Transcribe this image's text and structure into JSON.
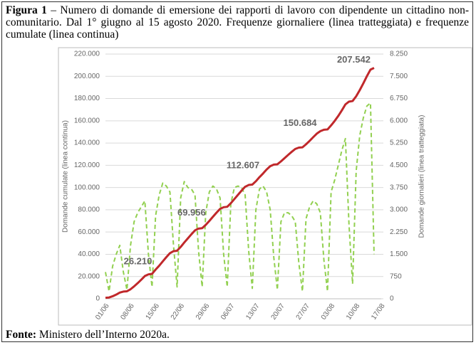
{
  "chart_data": {
    "type": "line",
    "label": "Figura 1",
    "title": "– Numero di domande di emersione dei rapporti di lavoro con dipendente un cittadino non-comunitario. Dal 1° giugno al 15 agosto 2020. Frequenze giornaliere (linea tratteggiata) e frequenze cumulate (linea continua)",
    "ylabel": "Domande cumulate (linea continua)",
    "y2label": "Domande giornalieri (linea tratteggiata)",
    "source_label": "Fonte:",
    "source": "Ministero dell’Interno 2020a.",
    "categories": [
      "01/06",
      null,
      null,
      null,
      null,
      null,
      null,
      "08/06",
      null,
      null,
      null,
      null,
      null,
      null,
      "15/06",
      null,
      null,
      null,
      null,
      null,
      null,
      "22/06",
      null,
      null,
      null,
      null,
      null,
      null,
      "29/06",
      null,
      null,
      null,
      null,
      null,
      null,
      "06/07",
      null,
      null,
      null,
      null,
      null,
      null,
      "13/07",
      null,
      null,
      null,
      null,
      null,
      null,
      "20/07",
      null,
      null,
      null,
      null,
      null,
      null,
      "27/07",
      null,
      null,
      null,
      null,
      null,
      null,
      "03/08",
      null,
      null,
      null,
      null,
      null,
      null,
      "10/08",
      null,
      null,
      null,
      null,
      null,
      null,
      "17/08"
    ],
    "series": [
      {
        "name": "Domande cumulate",
        "color": "#c0282b",
        "dashed": false,
        "values": [
          900,
          1150,
          2250,
          3750,
          5550,
          6450,
          6750,
          8550,
          11150,
          14050,
          17150,
          20450,
          21950,
          22350,
          26210,
          29700,
          33600,
          37400,
          41000,
          42800,
          43200,
          46600,
          50550,
          54300,
          58000,
          61500,
          63100,
          63500,
          66400,
          69956,
          73700,
          77400,
          80800,
          82300,
          82700,
          85900,
          89650,
          93450,
          97200,
          100700,
          102300,
          102650,
          105650,
          109350,
          112607,
          116200,
          119200,
          120600,
          120900,
          123500,
          126400,
          129300,
          132100,
          134700,
          135900,
          136150,
          138850,
          141950,
          145250,
          148450,
          150684,
          152000,
          152250,
          155850,
          159850,
          164350,
          169350,
          174750,
          177250,
          177750,
          182050,
          187550,
          193650,
          200150,
          206000,
          207542,
          null,
          null
        ],
        "value_labels": [
          null,
          null,
          null,
          null,
          null,
          null,
          null,
          null,
          null,
          null,
          null,
          null,
          null,
          null,
          "26.210",
          null,
          null,
          null,
          null,
          null,
          null,
          null,
          null,
          null,
          null,
          null,
          null,
          null,
          null,
          "69.956",
          null,
          null,
          null,
          null,
          null,
          null,
          null,
          null,
          null,
          null,
          null,
          null,
          null,
          null,
          "112.607",
          null,
          null,
          null,
          null,
          null,
          null,
          null,
          null,
          null,
          null,
          null,
          null,
          null,
          null,
          null,
          "150.684",
          null,
          null,
          null,
          null,
          null,
          null,
          null,
          null,
          null,
          null,
          null,
          null,
          null,
          null,
          "207.542",
          null,
          null
        ]
      },
      {
        "name": "Domande giornaliere",
        "color": "#92d050",
        "dashed": true,
        "axis": "y2",
        "values": [
          900,
          250,
          1100,
          1500,
          1800,
          900,
          300,
          1800,
          2600,
          2900,
          3100,
          3300,
          1500,
          400,
          2800,
          3500,
          3900,
          3800,
          3600,
          1800,
          400,
          3400,
          3950,
          3750,
          3700,
          3500,
          1600,
          400,
          2900,
          3600,
          3800,
          3700,
          3400,
          1500,
          400,
          3200,
          3750,
          3800,
          3750,
          3500,
          1600,
          350,
          3000,
          3700,
          3800,
          3600,
          3000,
          1400,
          300,
          2600,
          2900,
          2900,
          2800,
          2600,
          1200,
          250,
          2700,
          3100,
          3300,
          3200,
          2900,
          1300,
          250,
          3600,
          4000,
          4500,
          5000,
          5400,
          2500,
          500,
          4300,
          5500,
          6100,
          6500,
          6600,
          1500,
          null,
          null
        ]
      }
    ],
    "ylim": [
      0,
      220000
    ],
    "yticks": [
      0,
      {
        "value": 20000,
        "label": "20.000"
      },
      {
        "value": 40000,
        "label": "40.000"
      },
      {
        "value": 60000,
        "label": "60.000"
      },
      {
        "value": 80000,
        "label": "80.000"
      },
      {
        "value": 100000,
        "label": "100.000"
      },
      {
        "value": 120000,
        "label": "120.000"
      },
      {
        "value": 140000,
        "label": "140.000"
      },
      {
        "value": 160000,
        "label": "160.000"
      },
      {
        "value": 180000,
        "label": "180.000"
      },
      {
        "value": 200000,
        "label": "200.000"
      },
      {
        "value": 220000,
        "label": "220.000"
      }
    ],
    "y2lim": [
      0,
      8250
    ],
    "y2ticks": [
      0,
      750,
      {
        "value": 1500,
        "label": "1.500"
      },
      {
        "value": 2250,
        "label": "2.250"
      },
      {
        "value": 3000,
        "label": "3.000"
      },
      {
        "value": 3750,
        "label": "3.750"
      },
      {
        "value": 4500,
        "label": "4.500"
      },
      {
        "value": 5250,
        "label": "5.250"
      },
      {
        "value": 6000,
        "label": "6.000"
      },
      {
        "value": 6750,
        "label": "6.750"
      },
      {
        "value": 7500,
        "label": "7.500"
      },
      {
        "value": 8250,
        "label": "8.250"
      }
    ],
    "grid": true
  }
}
